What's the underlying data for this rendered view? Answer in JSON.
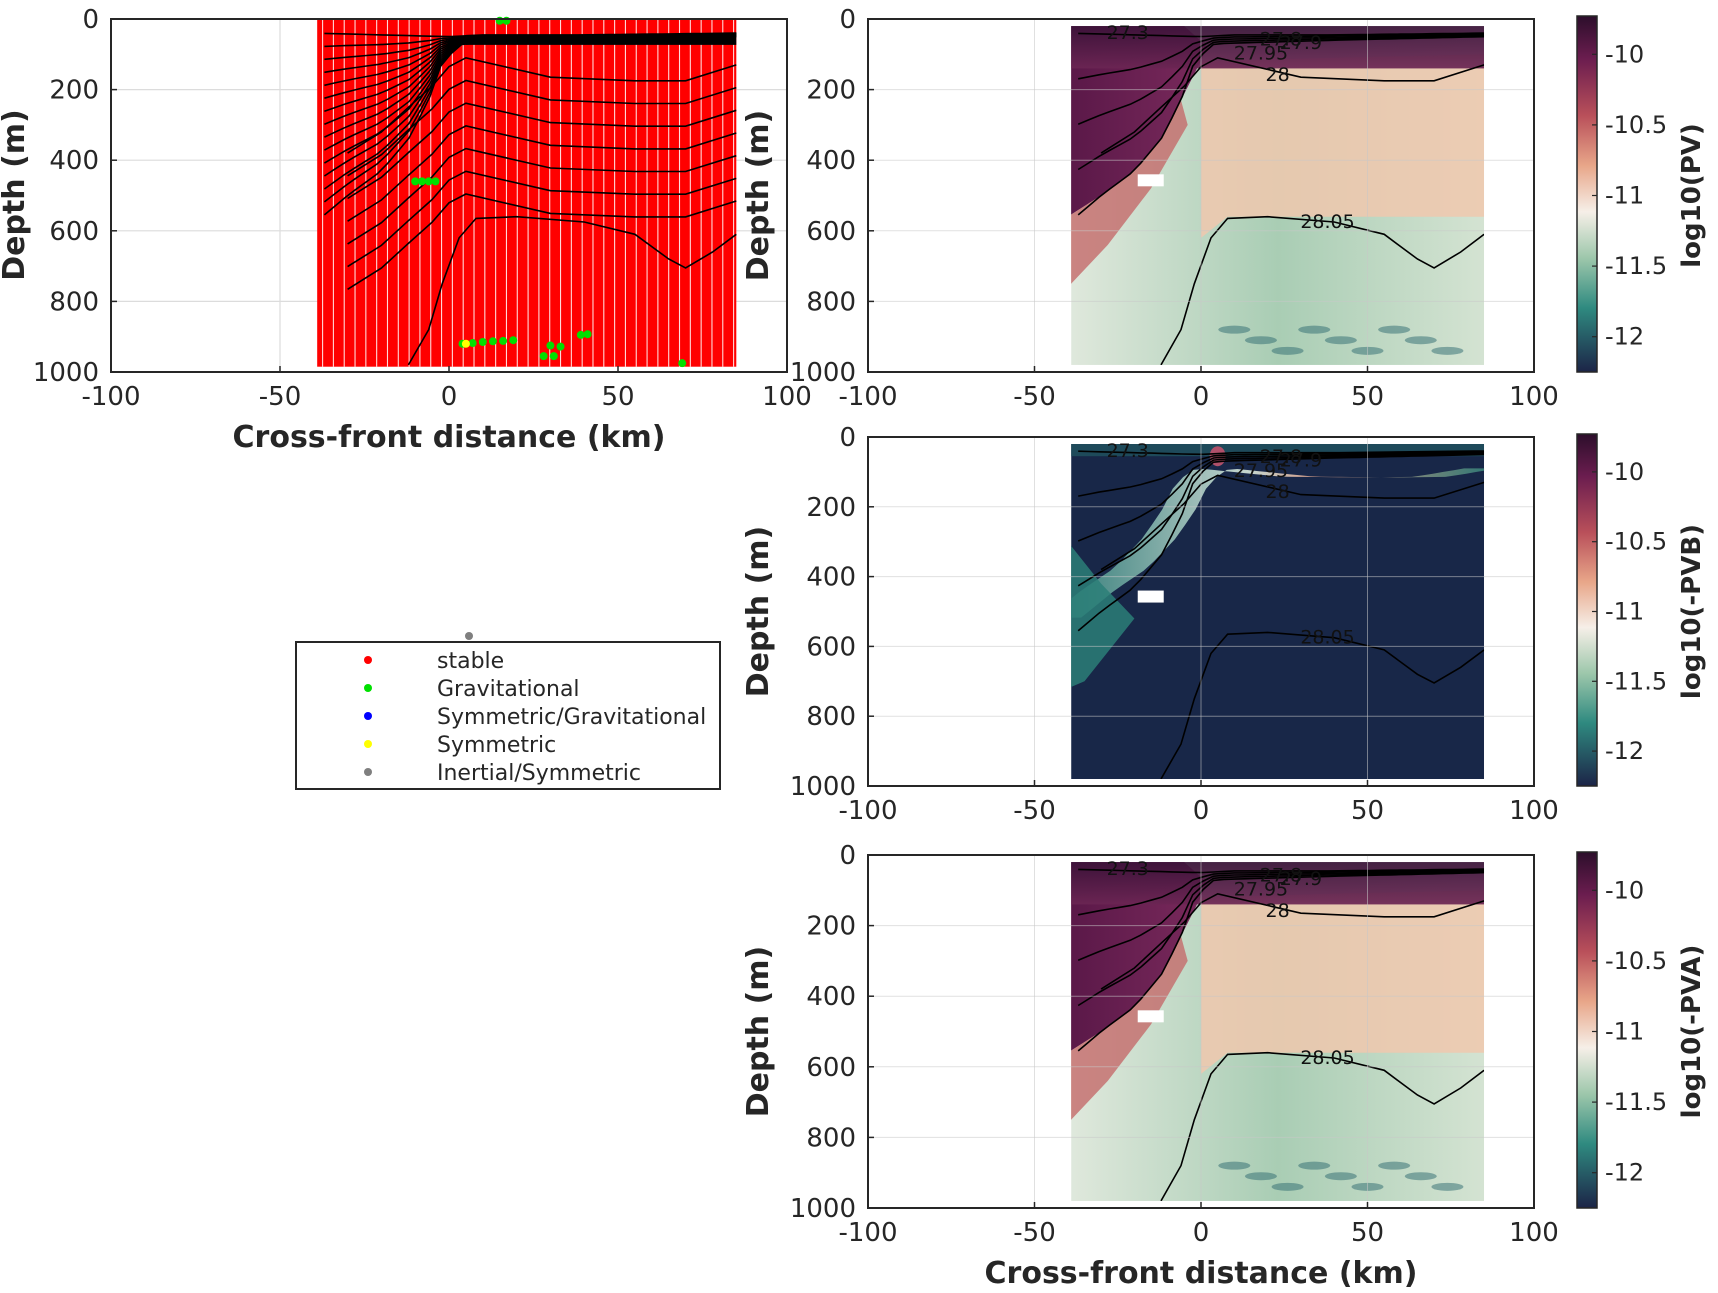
{
  "chart_data": [
    {
      "type": "scatter",
      "panel": "stability-regime",
      "title": "",
      "xlabel": "Cross-front distance (km)",
      "ylabel": "Depth (m)",
      "xlim": [
        -100,
        100
      ],
      "ylim": [
        0,
        1000
      ],
      "y_reversed": true,
      "xticks": [
        "-100",
        "-50",
        "0",
        "50",
        "100"
      ],
      "yticks": [
        "0",
        "200",
        "400",
        "600",
        "800",
        "1000"
      ],
      "grid": true,
      "data_x_extent": [
        -39,
        85
      ],
      "series": [
        {
          "name": "stable",
          "color": "#ff0000",
          "coverage": "fills nearly all sampled profiles from 20 m to 980 m"
        },
        {
          "name": "Gravitational",
          "color": "#00e000",
          "points": [
            [
              15,
              5
            ],
            [
              17,
              5
            ],
            [
              -10,
              460
            ],
            [
              -8,
              460
            ],
            [
              -6,
              460
            ],
            [
              -4,
              460
            ],
            [
              4,
              920
            ],
            [
              7,
              918
            ],
            [
              10,
              915
            ],
            [
              13,
              913
            ],
            [
              16,
              912
            ],
            [
              19,
              910
            ],
            [
              30,
              925
            ],
            [
              33,
              928
            ],
            [
              28,
              955
            ],
            [
              31,
              955
            ],
            [
              39,
              895
            ],
            [
              41,
              893
            ],
            [
              69,
              975
            ]
          ]
        },
        {
          "name": "Symmetric/Gravitational",
          "color": "#0000ff",
          "points": []
        },
        {
          "name": "Symmetric",
          "color": "#ffff00",
          "points": [
            [
              5,
              920
            ]
          ]
        },
        {
          "name": "Inertial/Symmetric",
          "color": "#7f7f7f",
          "points": []
        }
      ],
      "legend_placement": "below panel, left side"
    },
    {
      "type": "heatmap",
      "panel": "log10-PV",
      "xlabel": "",
      "ylabel": "Depth (m)",
      "xlim": [
        -100,
        100
      ],
      "ylim": [
        0,
        1000
      ],
      "y_reversed": true,
      "xticks": [
        "-100",
        "-50",
        "0",
        "50",
        "100"
      ],
      "yticks": [
        "0",
        "200",
        "400",
        "600",
        "800",
        "1000"
      ],
      "colorbar_label": "log10(PV)",
      "colorbar_ticks": [
        "-10",
        "-10.5",
        "-11",
        "-11.5",
        "-12"
      ],
      "clim": [
        -12.25,
        -9.75
      ],
      "contour_labels": [
        "27.3",
        "27.8",
        "27.9",
        "27.95",
        "28",
        "28.05"
      ]
    },
    {
      "type": "heatmap",
      "panel": "log10-minus-PVB",
      "xlabel": "",
      "ylabel": "Depth (m)",
      "xlim": [
        -100,
        100
      ],
      "ylim": [
        0,
        1000
      ],
      "y_reversed": true,
      "xticks": [
        "-100",
        "-50",
        "0",
        "50",
        "100"
      ],
      "yticks": [
        "0",
        "200",
        "400",
        "600",
        "800",
        "1000"
      ],
      "colorbar_label": "log10(-PVB)",
      "colorbar_ticks": [
        "-10",
        "-10.5",
        "-11",
        "-11.5",
        "-12"
      ],
      "clim": [
        -12.25,
        -9.75
      ],
      "contour_labels": [
        "27.3",
        "27.8",
        "27.9",
        "27.95",
        "28",
        "28.05"
      ]
    },
    {
      "type": "heatmap",
      "panel": "log10-minus-PVA",
      "xlabel": "Cross-front distance (km)",
      "ylabel": "Depth (m)",
      "xlim": [
        -100,
        100
      ],
      "ylim": [
        0,
        1000
      ],
      "y_reversed": true,
      "xticks": [
        "-100",
        "-50",
        "0",
        "50",
        "100"
      ],
      "yticks": [
        "0",
        "200",
        "400",
        "600",
        "800",
        "1000"
      ],
      "colorbar_label": "log10(-PVA)",
      "colorbar_ticks": [
        "-10",
        "-10.5",
        "-11",
        "-11.5",
        "-12"
      ],
      "clim": [
        -12.25,
        -9.75
      ],
      "contour_labels": [
        "27.3",
        "27.8",
        "27.9",
        "27.95",
        "28",
        "28.05"
      ]
    }
  ],
  "colors": {
    "stable": "#ff0000",
    "gravitational": "#00e000",
    "symmetric_gravitational": "#0000ff",
    "symmetric": "#ffff00",
    "inertial_symmetric": "#7f7f7f",
    "cmap_high": "#3a1238",
    "cmap_mid": "#f3ede6",
    "cmap_low": "#182748"
  },
  "isopycnals_ref": {
    "note": "shared density contour shapes (x km, depth m)",
    "d2795": [
      [
        -40,
        580
      ],
      [
        -30,
        500
      ],
      [
        -20,
        430
      ],
      [
        -12,
        340
      ],
      [
        -6,
        230
      ],
      [
        -2,
        120
      ],
      [
        4,
        70
      ],
      [
        40,
        60
      ],
      [
        85,
        50
      ]
    ],
    "d28": [
      [
        -40,
        455
      ],
      [
        -30,
        380
      ],
      [
        -20,
        320
      ],
      [
        -12,
        250
      ],
      [
        -5,
        190
      ],
      [
        0,
        135
      ],
      [
        5,
        110
      ],
      [
        30,
        165
      ],
      [
        55,
        175
      ],
      [
        70,
        175
      ],
      [
        85,
        130
      ]
    ],
    "d2805": [
      [
        -12,
        980
      ],
      [
        -6,
        880
      ],
      [
        -2,
        750
      ],
      [
        3,
        620
      ],
      [
        8,
        565
      ],
      [
        20,
        560
      ],
      [
        40,
        575
      ],
      [
        55,
        610
      ],
      [
        65,
        680
      ],
      [
        70,
        705
      ],
      [
        78,
        660
      ],
      [
        85,
        610
      ]
    ]
  }
}
